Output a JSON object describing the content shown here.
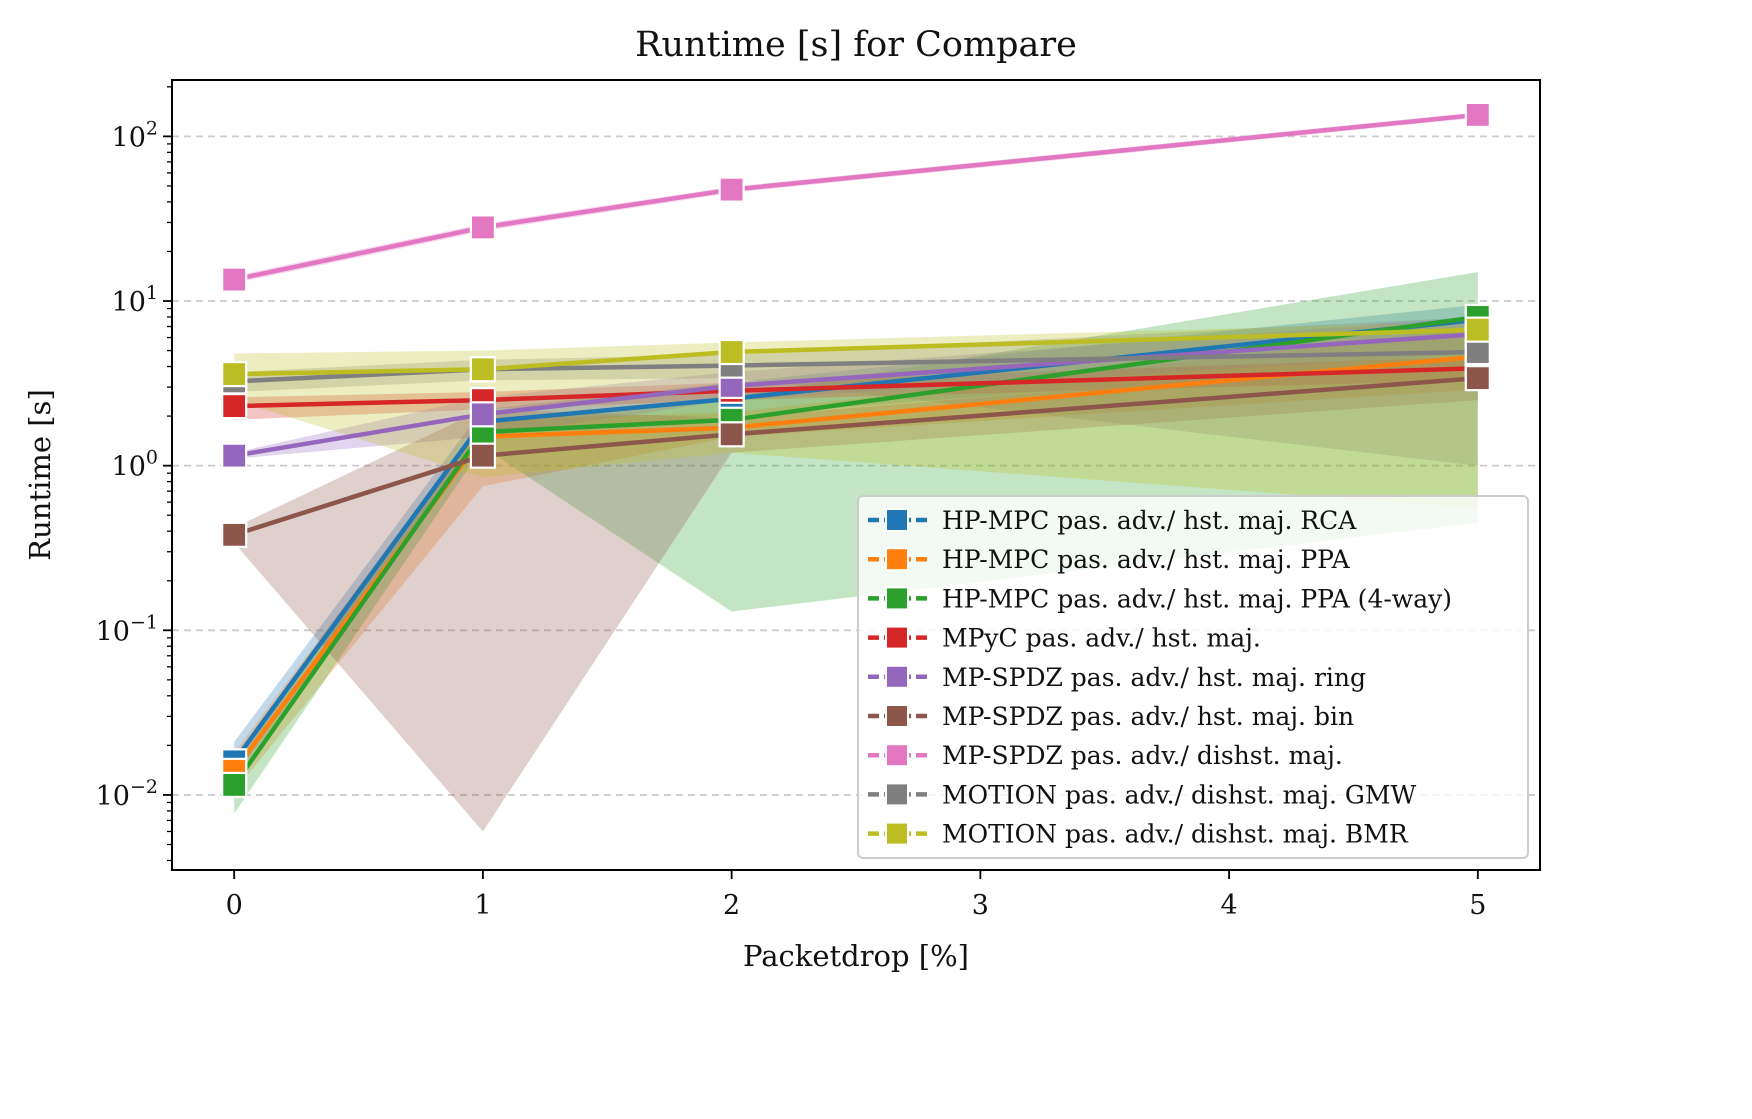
{
  "chart_data": {
    "type": "line",
    "title": "Runtime [s] for Compare",
    "xlabel": "Packetdrop [%]",
    "ylabel": "Runtime [s]",
    "yscale": "log",
    "xlim": [
      -0.25,
      5.25
    ],
    "ylim": [
      0.0035,
      220
    ],
    "grid": "horizontal dashed",
    "legend_position": "lower-right",
    "x": [
      0,
      1,
      2,
      5
    ],
    "x_ticks": [
      0,
      1,
      2,
      3,
      4,
      5
    ],
    "y_ticks": [
      {
        "value": 0.01,
        "base": "10",
        "exp": "−2"
      },
      {
        "value": 0.1,
        "base": "10",
        "exp": "−1"
      },
      {
        "value": 1,
        "base": "10",
        "exp": "0"
      },
      {
        "value": 10,
        "base": "10",
        "exp": "1"
      },
      {
        "value": 100,
        "base": "10",
        "exp": "2"
      }
    ],
    "series": [
      {
        "name": "HP-MPC pas. adv./ hst. maj. RCA",
        "color": "#1f77b4",
        "values": [
          0.016,
          1.85,
          2.55,
          7.7
        ],
        "lower": [
          0.0125,
          1.55,
          2.0,
          4.5
        ],
        "upper": [
          0.021,
          2.2,
          3.2,
          9.5
        ]
      },
      {
        "name": "HP-MPC pas. adv./ hst. maj. PPA",
        "color": "#ff7f0e",
        "values": [
          0.014,
          1.5,
          1.7,
          4.6
        ],
        "lower": [
          0.0105,
          0.75,
          1.5,
          2.9
        ],
        "upper": [
          0.018,
          1.9,
          2.1,
          6.8
        ]
      },
      {
        "name": "HP-MPC pas. adv./ hst. maj. PPA (4-way)",
        "color": "#2ca02c",
        "values": [
          0.0115,
          1.6,
          1.9,
          8.0
        ],
        "lower": [
          0.0077,
          1.3,
          0.13,
          0.45
        ],
        "upper": [
          0.015,
          1.9,
          2.6,
          15.0
        ]
      },
      {
        "name": "MPyC pas. adv./ hst. maj.",
        "color": "#d62728",
        "values": [
          2.3,
          2.5,
          2.85,
          3.9
        ],
        "lower": [
          1.9,
          2.2,
          2.5,
          3.3
        ],
        "upper": [
          2.6,
          2.8,
          3.2,
          4.6
        ]
      },
      {
        "name": "MP-SPDZ pas. adv./ hst. maj. ring",
        "color": "#9467bd",
        "values": [
          1.15,
          2.05,
          3.05,
          6.3
        ],
        "lower": [
          1.1,
          1.5,
          2.5,
          4.8
        ],
        "upper": [
          1.2,
          2.6,
          3.7,
          8.0
        ]
      },
      {
        "name": "MP-SPDZ pas. adv./ hst. maj. bin",
        "color": "#8c564b",
        "values": [
          0.38,
          1.15,
          1.55,
          3.4
        ],
        "lower": [
          0.34,
          0.006,
          1.2,
          2.5
        ],
        "upper": [
          0.42,
          2.2,
          1.95,
          4.6
        ]
      },
      {
        "name": "MP-SPDZ pas. adv./ dishst. maj.",
        "color": "#e377c2",
        "values": [
          13.5,
          28.0,
          47.5,
          135.0
        ],
        "lower": [
          12.8,
          26.5,
          45.5,
          130.0
        ],
        "upper": [
          14.2,
          29.5,
          49.5,
          140.0
        ]
      },
      {
        "name": "MOTION pas. adv./ dishst. maj. GMW",
        "color": "#7f7f7f",
        "values": [
          3.25,
          3.85,
          4.05,
          4.9
        ],
        "lower": [
          2.8,
          3.3,
          3.4,
          1.0
        ],
        "upper": [
          3.7,
          4.4,
          4.7,
          8.0
        ]
      },
      {
        "name": "MOTION pas. adv./ dishst. maj. BMR",
        "color": "#bcbd22",
        "values": [
          3.6,
          3.85,
          4.9,
          6.7
        ],
        "lower": [
          2.5,
          0.85,
          1.2,
          0.55
        ],
        "upper": [
          4.8,
          5.0,
          5.6,
          7.5
        ]
      }
    ]
  }
}
